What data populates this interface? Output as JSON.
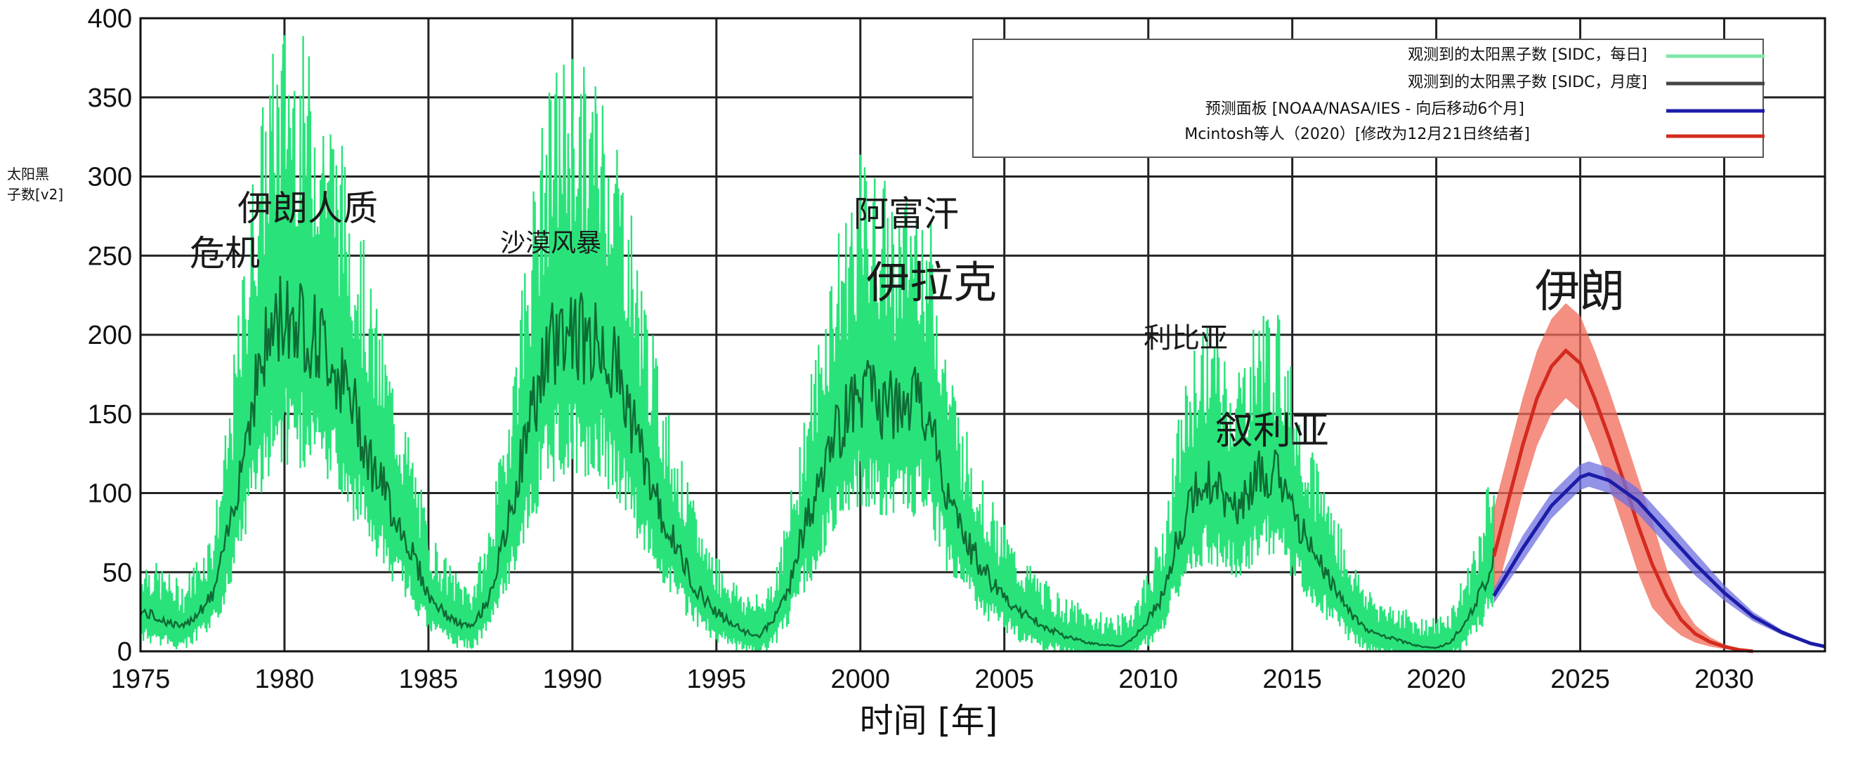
{
  "chart_data": {
    "type": "line",
    "xlabel": "时间 [年]",
    "ylabel_lines": [
      "太阳黑",
      "子数[v2]"
    ],
    "xlim": [
      1975,
      2033.5
    ],
    "ylim": [
      0,
      400
    ],
    "x_ticks": [
      1975,
      1980,
      1985,
      1990,
      1995,
      2000,
      2005,
      2010,
      2015,
      2020,
      2025,
      2030
    ],
    "y_ticks": [
      0,
      50,
      100,
      150,
      200,
      250,
      300,
      350,
      400
    ],
    "grid": true,
    "legend_position": "top-right",
    "legend": [
      {
        "label": "观测到的太阳黑子数 [SIDC，每日]",
        "color": "#7ee8a8"
      },
      {
        "label": "观测到的太阳黑子数 [SIDC，月度]",
        "color": "#444444"
      },
      {
        "label": "预测面板 [NOAA/NASA/IES - 向后移动6个月]",
        "color": "#1c1ca8"
      },
      {
        "label": "Mcintosh等人（2020）[修改为12月21日终结者]",
        "color": "#d42a1e"
      }
    ],
    "colors": {
      "daily": "#29e37a",
      "daily_light": "#8df0b6",
      "monthly": "#0e6b34",
      "panel": "#1c1ca8",
      "panel_band": "#6f6fe0",
      "mcintosh": "#d42a1e",
      "mcintosh_band": "#f06a58"
    },
    "series": [
      {
        "name": "观测到的太阳黑子数 [SIDC，月度]",
        "x": [
          1975,
          1975.5,
          1976,
          1976.5,
          1977,
          1977.5,
          1978,
          1978.5,
          1979,
          1979.5,
          1980,
          1980.5,
          1981,
          1981.5,
          1982,
          1982.5,
          1983,
          1983.5,
          1984,
          1984.5,
          1985,
          1985.5,
          1986,
          1986.5,
          1987,
          1987.5,
          1988,
          1988.5,
          1989,
          1989.5,
          1990,
          1990.5,
          1991,
          1991.5,
          1992,
          1992.5,
          1993,
          1993.5,
          1994,
          1994.5,
          1995,
          1995.5,
          1996,
          1996.5,
          1997,
          1997.5,
          1998,
          1998.5,
          1999,
          1999.5,
          2000,
          2000.5,
          2001,
          2001.5,
          2002,
          2002.5,
          2003,
          2003.5,
          2004,
          2004.5,
          2005,
          2005.5,
          2006,
          2006.5,
          2007,
          2007.5,
          2008,
          2008.5,
          2009,
          2009.5,
          2010,
          2010.5,
          2011,
          2011.5,
          2012,
          2012.5,
          2013,
          2013.5,
          2014,
          2014.5,
          2015,
          2015.5,
          2016,
          2016.5,
          2017,
          2017.5,
          2018,
          2018.5,
          2019,
          2019.5,
          2020,
          2020.5,
          2021,
          2021.5,
          2022
        ],
        "y": [
          25,
          22,
          18,
          15,
          25,
          35,
          70,
          120,
          170,
          200,
          215,
          210,
          200,
          190,
          170,
          150,
          120,
          100,
          80,
          60,
          35,
          25,
          18,
          15,
          30,
          60,
          100,
          145,
          180,
          200,
          205,
          195,
          195,
          180,
          150,
          120,
          90,
          70,
          50,
          35,
          25,
          18,
          12,
          10,
          20,
          40,
          75,
          100,
          130,
          150,
          165,
          160,
          155,
          150,
          160,
          140,
          100,
          75,
          60,
          45,
          35,
          25,
          20,
          15,
          10,
          8,
          5,
          4,
          3,
          8,
          20,
          35,
          70,
          95,
          110,
          100,
          90,
          100,
          115,
          110,
          90,
          70,
          55,
          40,
          25,
          15,
          10,
          8,
          5,
          3,
          2,
          6,
          18,
          35,
          60
        ]
      },
      {
        "name": "预测面板 [NOAA/NASA/IES - 向后移动6个月]",
        "x": [
          2022,
          2023,
          2024,
          2025,
          2025.3,
          2026,
          2027,
          2028,
          2029,
          2030,
          2031,
          2032,
          2033,
          2033.5
        ],
        "y": [
          35,
          65,
          92,
          110,
          112,
          108,
          95,
          75,
          55,
          37,
          22,
          12,
          5,
          3
        ],
        "band": 8
      },
      {
        "name": "Mcintosh等人（2020）[修改为12月21日终结者]",
        "x": [
          2022,
          2022.5,
          2023,
          2023.5,
          2024,
          2024.5,
          2025,
          2025.5,
          2026,
          2026.5,
          2027,
          2027.5,
          2028,
          2028.5,
          2029,
          2029.5,
          2030,
          2030.5,
          2031
        ],
        "y": [
          60,
          95,
          130,
          160,
          180,
          190,
          182,
          160,
          135,
          108,
          80,
          55,
          35,
          20,
          11,
          6,
          3,
          1,
          0
        ],
        "band": 30
      }
    ]
  },
  "annotations": [
    {
      "lines": [
        "伊朗人质",
        "危机"
      ]
    },
    {
      "lines": [
        "沙漠风暴"
      ]
    },
    {
      "lines": [
        "阿富汗"
      ]
    },
    {
      "lines": [
        "伊拉克"
      ]
    },
    {
      "lines": [
        "利比亚"
      ]
    },
    {
      "lines": [
        "叙利亚"
      ]
    },
    {
      "lines": [
        "伊朗"
      ]
    }
  ]
}
